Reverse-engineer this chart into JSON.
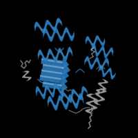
{
  "background_color": "#000000",
  "figure_size": [
    2.0,
    2.0
  ],
  "dpi": 100,
  "blue": "#2b7bbd",
  "blue_dark": "#1a5a8a",
  "blue_light": "#4a9fd4",
  "gray": "#9a9a9a",
  "gray_dark": "#6a6a6a",
  "gray_light": "#c0c0c0",
  "white_highlight": "#e0e8f0"
}
